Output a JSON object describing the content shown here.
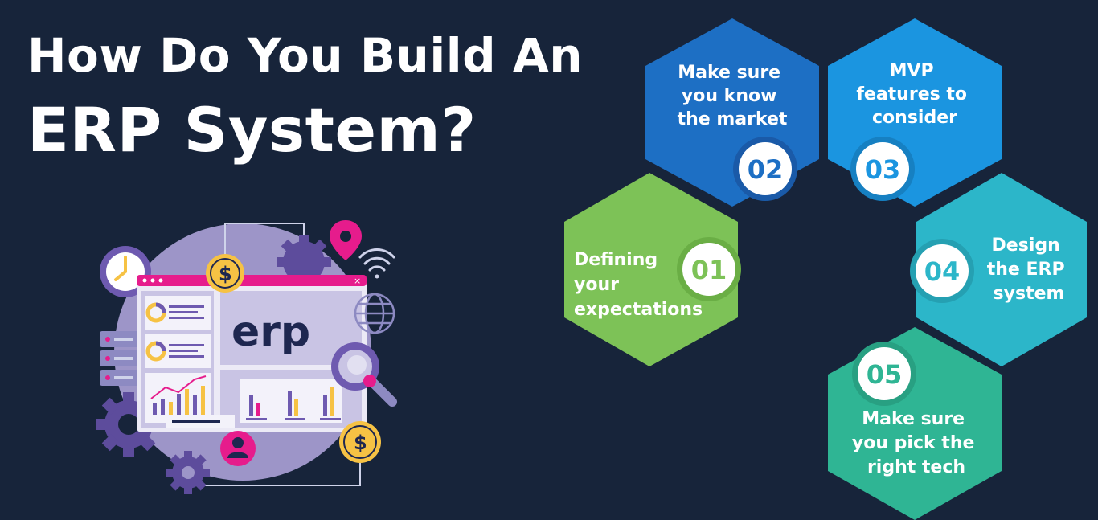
{
  "title": {
    "line1": "How Do You Build An",
    "line2": "ERP System?"
  },
  "illustration": {
    "screen_word": "erp",
    "currency_symbol": "$",
    "icons": [
      "clock-icon",
      "gear-icon",
      "location-pin-icon",
      "wifi-icon",
      "globe-icon",
      "magnifier-icon",
      "user-icon",
      "dollar-coin-icon",
      "server-icon",
      "bar-chart-icon",
      "donut-chart-icon"
    ]
  },
  "steps": [
    {
      "number": "01",
      "lines": [
        "Defining",
        "your",
        "expectations"
      ],
      "color": "#7dc257"
    },
    {
      "number": "02",
      "lines": [
        "Make sure",
        "you know",
        "the market"
      ],
      "color": "#1d6fc4"
    },
    {
      "number": "03",
      "lines": [
        "MVP",
        "features to",
        "consider"
      ],
      "color": "#1b95e0"
    },
    {
      "number": "04",
      "lines": [
        "Design",
        "the ERP",
        "system"
      ],
      "color": "#2cb6c9"
    },
    {
      "number": "05",
      "lines": [
        "Make sure",
        "you pick the",
        "right tech"
      ],
      "color": "#2fb594"
    }
  ],
  "colors": {
    "background": "#17243a",
    "title": "#ffffff",
    "accent_pink": "#e61c8c",
    "coin_yellow": "#f6c244"
  }
}
